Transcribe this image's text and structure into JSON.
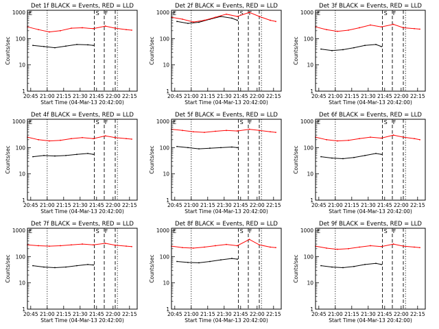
{
  "x_axis": {
    "label": "Start Time (04-Mar-13 20:42:00)",
    "tick_labels": [
      "20:45",
      "21:00",
      "21:15",
      "21:30",
      "21:45",
      "22:00",
      "22:15"
    ],
    "tick_minutes": [
      3,
      18,
      33,
      48,
      63,
      78,
      93
    ],
    "range_minutes": [
      0,
      100
    ]
  },
  "y_axis": {
    "label": "Counts/sec",
    "scale": "log",
    "tick_labels": [
      "1",
      "10",
      "100",
      "1000"
    ],
    "tick_values": [
      1,
      10,
      100,
      1000
    ],
    "range": [
      1,
      1200
    ]
  },
  "legend_colors": {
    "events": "#000000",
    "lld": "#ff0000"
  },
  "vertical_markers": [
    {
      "minute": 18,
      "style": "dotted"
    },
    {
      "minute": 61,
      "style": "dashed"
    },
    {
      "minute": 70,
      "style": "dashed"
    },
    {
      "minute": 80,
      "style": "dashed"
    },
    {
      "minute": 82,
      "style": "dotted"
    }
  ],
  "top_markers": [
    {
      "minute": 1,
      "glyph": "E"
    },
    {
      "minute": 62,
      "glyph": "S"
    },
    {
      "minute": 70,
      "glyph": "F"
    }
  ],
  "chart_data": [
    {
      "type": "line",
      "title": "Det 1f BLACK = Events, RED = LLD",
      "series": [
        {
          "name": "Events",
          "color": "#000000",
          "x": [
            5,
            15,
            25,
            35,
            45,
            55,
            60
          ],
          "values": [
            55,
            50,
            45,
            52,
            60,
            58,
            55
          ]
        },
        {
          "name": "LLD",
          "color": "#ff0000",
          "x": [
            0,
            10,
            20,
            30,
            40,
            50,
            60,
            71,
            80,
            90,
            95
          ],
          "values": [
            280,
            220,
            180,
            200,
            250,
            260,
            240,
            300,
            250,
            220,
            210
          ]
        }
      ]
    },
    {
      "type": "line",
      "title": "Det 2f BLACK = Events, RED = LLD",
      "series": [
        {
          "name": "Events",
          "color": "#000000",
          "x": [
            5,
            15,
            25,
            35,
            45,
            55,
            60
          ],
          "values": [
            450,
            380,
            420,
            550,
            700,
            600,
            500
          ]
        },
        {
          "name": "LLD",
          "color": "#ff0000",
          "x": [
            0,
            10,
            20,
            30,
            40,
            50,
            60,
            71,
            80,
            90,
            95
          ],
          "values": [
            650,
            550,
            430,
            500,
            650,
            850,
            700,
            1000,
            700,
            500,
            450
          ]
        }
      ]
    },
    {
      "type": "line",
      "title": "Det 3f BLACK = Events, RED = LLD",
      "series": [
        {
          "name": "Events",
          "color": "#000000",
          "x": [
            5,
            15,
            25,
            35,
            45,
            55,
            60
          ],
          "values": [
            40,
            35,
            38,
            45,
            55,
            60,
            50
          ]
        },
        {
          "name": "LLD",
          "color": "#ff0000",
          "x": [
            0,
            10,
            20,
            30,
            40,
            50,
            60,
            71,
            80,
            90,
            95
          ],
          "values": [
            280,
            220,
            190,
            210,
            260,
            330,
            280,
            350,
            260,
            240,
            230
          ]
        }
      ]
    },
    {
      "type": "line",
      "title": "Det 4f BLACK = Events, RED = LLD",
      "series": [
        {
          "name": "Events",
          "color": "#000000",
          "x": [
            5,
            15,
            25,
            35,
            45,
            55,
            60
          ],
          "values": [
            45,
            50,
            48,
            50,
            55,
            60,
            55
          ]
        },
        {
          "name": "LLD",
          "color": "#ff0000",
          "x": [
            0,
            10,
            20,
            30,
            40,
            50,
            60,
            71,
            80,
            90,
            95
          ],
          "values": [
            250,
            200,
            180,
            190,
            220,
            240,
            220,
            280,
            240,
            220,
            210
          ]
        }
      ]
    },
    {
      "type": "line",
      "title": "Det 5f BLACK = Events, RED = LLD",
      "series": [
        {
          "name": "Events",
          "color": "#000000",
          "x": [
            5,
            15,
            25,
            35,
            45,
            55,
            60
          ],
          "values": [
            110,
            100,
            90,
            95,
            100,
            105,
            100
          ]
        },
        {
          "name": "LLD",
          "color": "#ff0000",
          "x": [
            0,
            10,
            20,
            30,
            40,
            50,
            60,
            71,
            80,
            90,
            95
          ],
          "values": [
            500,
            450,
            400,
            380,
            420,
            450,
            430,
            500,
            450,
            400,
            380
          ]
        }
      ]
    },
    {
      "type": "line",
      "title": "Det 6f BLACK = Events, RED = LLD",
      "series": [
        {
          "name": "Events",
          "color": "#000000",
          "x": [
            5,
            15,
            25,
            35,
            45,
            55,
            60
          ],
          "values": [
            45,
            40,
            38,
            42,
            50,
            60,
            55
          ]
        },
        {
          "name": "LLD",
          "color": "#ff0000",
          "x": [
            0,
            10,
            20,
            30,
            40,
            50,
            60,
            71,
            80,
            90,
            95
          ],
          "values": [
            250,
            200,
            180,
            190,
            220,
            250,
            230,
            300,
            250,
            220,
            200
          ]
        }
      ]
    },
    {
      "type": "line",
      "title": "Det 7f BLACK = Events, RED = LLD",
      "series": [
        {
          "name": "Events",
          "color": "#000000",
          "x": [
            5,
            15,
            25,
            35,
            45,
            55,
            60
          ],
          "values": [
            45,
            40,
            38,
            40,
            45,
            50,
            48
          ]
        },
        {
          "name": "LLD",
          "color": "#ff0000",
          "x": [
            0,
            10,
            20,
            30,
            40,
            50,
            60,
            71,
            80,
            90,
            95
          ],
          "values": [
            280,
            260,
            250,
            260,
            280,
            300,
            280,
            320,
            270,
            250,
            240
          ]
        }
      ]
    },
    {
      "type": "line",
      "title": "Det 8f BLACK = Events, RED = LLD",
      "series": [
        {
          "name": "Events",
          "color": "#000000",
          "x": [
            5,
            15,
            25,
            35,
            45,
            55,
            60
          ],
          "values": [
            65,
            60,
            58,
            65,
            75,
            85,
            80
          ]
        },
        {
          "name": "LLD",
          "color": "#ff0000",
          "x": [
            0,
            10,
            20,
            30,
            40,
            50,
            60,
            71,
            80,
            90,
            95
          ],
          "values": [
            250,
            220,
            210,
            230,
            260,
            290,
            260,
            450,
            280,
            230,
            220
          ]
        }
      ]
    },
    {
      "type": "line",
      "title": "Det 9f BLACK = Events, RED = LLD",
      "series": [
        {
          "name": "Events",
          "color": "#000000",
          "x": [
            5,
            15,
            25,
            35,
            45,
            55,
            60
          ],
          "values": [
            45,
            40,
            38,
            42,
            50,
            55,
            50
          ]
        },
        {
          "name": "LLD",
          "color": "#ff0000",
          "x": [
            0,
            10,
            20,
            30,
            40,
            50,
            60,
            71,
            80,
            90,
            95
          ],
          "values": [
            250,
            210,
            190,
            200,
            230,
            260,
            240,
            300,
            250,
            230,
            220
          ]
        }
      ]
    }
  ]
}
